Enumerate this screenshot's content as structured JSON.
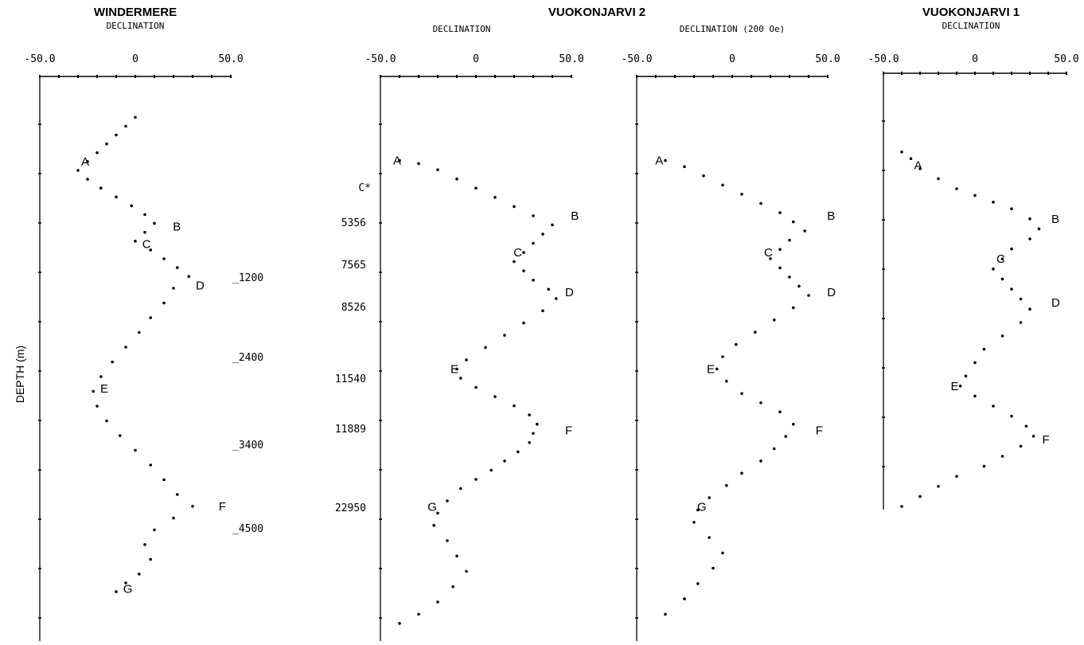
{
  "figure": {
    "titles": {
      "windermere": "WINDERMERE",
      "vuokonjarvi2": "VUOKONJARVI 2",
      "vuokonjarvi1": "VUOKONJARVI 1"
    },
    "depth_label": "DEPTH (m)",
    "windermere_ages": [
      {
        "label": "_1200",
        "at": "D"
      },
      {
        "label": "_2400",
        "at": "E"
      },
      {
        "label": "_3400",
        "at": "F"
      },
      {
        "label": "_4500",
        "at": "G"
      }
    ],
    "vuokonjarvi2_ages": [
      {
        "label": "C*",
        "at": "A-B"
      },
      {
        "label": "5356",
        "at": "B"
      },
      {
        "label": "7565",
        "at": "C-D"
      },
      {
        "label": "8526",
        "at": "D"
      },
      {
        "label": "11540",
        "at": "E"
      },
      {
        "label": "11889",
        "at": "F"
      },
      {
        "label": "22950",
        "at": "G"
      }
    ]
  },
  "chart_data": [
    {
      "type": "scatter",
      "title": "WINDERMERE",
      "xlabel": "DECLINATION",
      "ylabel": "DEPTH (m)",
      "xlim": [
        -50,
        50
      ],
      "xticks": [
        "-50.0",
        "0",
        "50.0"
      ],
      "points": [
        [
          0,
          0.02
        ],
        [
          -5,
          0.05
        ],
        [
          -10,
          0.08
        ],
        [
          -15,
          0.11
        ],
        [
          -20,
          0.14
        ],
        [
          -25,
          0.17
        ],
        [
          -30,
          0.2
        ],
        [
          -25,
          0.23
        ],
        [
          -18,
          0.26
        ],
        [
          -10,
          0.29
        ],
        [
          -2,
          0.32
        ],
        [
          5,
          0.35
        ],
        [
          10,
          0.38
        ],
        [
          5,
          0.41
        ],
        [
          0,
          0.44
        ],
        [
          8,
          0.47
        ],
        [
          15,
          0.5
        ],
        [
          22,
          0.53
        ],
        [
          28,
          0.56
        ],
        [
          20,
          0.6
        ],
        [
          15,
          0.65
        ],
        [
          8,
          0.7
        ],
        [
          2,
          0.75
        ],
        [
          -5,
          0.8
        ],
        [
          -12,
          0.85
        ],
        [
          -18,
          0.9
        ],
        [
          -22,
          0.95
        ],
        [
          -20,
          1.0
        ],
        [
          -15,
          1.05
        ],
        [
          -8,
          1.1
        ],
        [
          0,
          1.15
        ],
        [
          8,
          1.2
        ],
        [
          15,
          1.25
        ],
        [
          22,
          1.3
        ],
        [
          30,
          1.34
        ],
        [
          20,
          1.38
        ],
        [
          10,
          1.42
        ],
        [
          5,
          1.47
        ],
        [
          8,
          1.52
        ],
        [
          2,
          1.57
        ],
        [
          -5,
          1.6
        ],
        [
          -10,
          1.63
        ]
      ],
      "labels": [
        {
          "text": "A",
          "x": -30,
          "y": 0.17
        },
        {
          "text": "B",
          "x": 18,
          "y": 0.39
        },
        {
          "text": "C",
          "x": 2,
          "y": 0.45
        },
        {
          "text": "D",
          "x": 30,
          "y": 0.59
        },
        {
          "text": "E",
          "x": -20,
          "y": 0.94
        },
        {
          "text": "F",
          "x": 42,
          "y": 1.34
        },
        {
          "text": "G",
          "x": -8,
          "y": 1.62
        }
      ]
    },
    {
      "type": "scatter",
      "title": "VUOKONJARVI 2",
      "xlabel": "DECLINATION",
      "xlim": [
        -50,
        50
      ],
      "xticks": [
        "-50.0",
        "0",
        "50.0"
      ],
      "points": [
        [
          -40,
          0.16
        ],
        [
          -30,
          0.17
        ],
        [
          -20,
          0.19
        ],
        [
          -10,
          0.22
        ],
        [
          0,
          0.25
        ],
        [
          10,
          0.28
        ],
        [
          20,
          0.31
        ],
        [
          30,
          0.34
        ],
        [
          40,
          0.37
        ],
        [
          35,
          0.4
        ],
        [
          30,
          0.43
        ],
        [
          25,
          0.46
        ],
        [
          20,
          0.49
        ],
        [
          25,
          0.52
        ],
        [
          30,
          0.55
        ],
        [
          38,
          0.58
        ],
        [
          42,
          0.61
        ],
        [
          35,
          0.65
        ],
        [
          25,
          0.69
        ],
        [
          15,
          0.73
        ],
        [
          5,
          0.77
        ],
        [
          -5,
          0.81
        ],
        [
          -10,
          0.84
        ],
        [
          -8,
          0.87
        ],
        [
          0,
          0.9
        ],
        [
          10,
          0.93
        ],
        [
          20,
          0.96
        ],
        [
          28,
          0.99
        ],
        [
          32,
          1.02
        ],
        [
          30,
          1.05
        ],
        [
          28,
          1.08
        ],
        [
          22,
          1.11
        ],
        [
          15,
          1.14
        ],
        [
          8,
          1.17
        ],
        [
          0,
          1.2
        ],
        [
          -8,
          1.23
        ],
        [
          -15,
          1.27
        ],
        [
          -20,
          1.31
        ],
        [
          -22,
          1.35
        ],
        [
          -15,
          1.4
        ],
        [
          -10,
          1.45
        ],
        [
          -5,
          1.5
        ],
        [
          -12,
          1.55
        ],
        [
          -20,
          1.6
        ],
        [
          -30,
          1.64
        ],
        [
          -40,
          1.67
        ]
      ],
      "labels": [
        {
          "text": "A",
          "x": -45,
          "y": 0.16
        },
        {
          "text": "B",
          "x": 48,
          "y": 0.34
        },
        {
          "text": "C",
          "x": 18,
          "y": 0.46
        },
        {
          "text": "D",
          "x": 45,
          "y": 0.59
        },
        {
          "text": "E",
          "x": -15,
          "y": 0.84
        },
        {
          "text": "F",
          "x": 45,
          "y": 1.04
        },
        {
          "text": "G",
          "x": -27,
          "y": 1.29
        }
      ]
    },
    {
      "type": "scatter",
      "title": "",
      "xlabel": "DECLINATION (200 Oe)",
      "xlim": [
        -50,
        50
      ],
      "xticks": [
        "-50.0",
        "0",
        "50.0"
      ],
      "points": [
        [
          -35,
          0.16
        ],
        [
          -25,
          0.18
        ],
        [
          -15,
          0.21
        ],
        [
          -5,
          0.24
        ],
        [
          5,
          0.27
        ],
        [
          15,
          0.3
        ],
        [
          25,
          0.33
        ],
        [
          32,
          0.36
        ],
        [
          38,
          0.39
        ],
        [
          30,
          0.42
        ],
        [
          25,
          0.45
        ],
        [
          20,
          0.48
        ],
        [
          25,
          0.51
        ],
        [
          30,
          0.54
        ],
        [
          35,
          0.57
        ],
        [
          40,
          0.6
        ],
        [
          32,
          0.64
        ],
        [
          22,
          0.68
        ],
        [
          12,
          0.72
        ],
        [
          2,
          0.76
        ],
        [
          -5,
          0.8
        ],
        [
          -8,
          0.84
        ],
        [
          -3,
          0.88
        ],
        [
          5,
          0.92
        ],
        [
          15,
          0.95
        ],
        [
          25,
          0.98
        ],
        [
          32,
          1.02
        ],
        [
          28,
          1.06
        ],
        [
          22,
          1.1
        ],
        [
          15,
          1.14
        ],
        [
          5,
          1.18
        ],
        [
          -3,
          1.22
        ],
        [
          -12,
          1.26
        ],
        [
          -18,
          1.3
        ],
        [
          -20,
          1.34
        ],
        [
          -12,
          1.39
        ],
        [
          -5,
          1.44
        ],
        [
          -10,
          1.49
        ],
        [
          -18,
          1.54
        ],
        [
          -25,
          1.59
        ],
        [
          -35,
          1.64
        ]
      ],
      "labels": [
        {
          "text": "A",
          "x": -42,
          "y": 0.16
        },
        {
          "text": "B",
          "x": 48,
          "y": 0.34
        },
        {
          "text": "C",
          "x": 15,
          "y": 0.46
        },
        {
          "text": "D",
          "x": 48,
          "y": 0.59
        },
        {
          "text": "E",
          "x": -15,
          "y": 0.84
        },
        {
          "text": "F",
          "x": 42,
          "y": 1.04
        },
        {
          "text": "G",
          "x": -20,
          "y": 1.29
        }
      ]
    },
    {
      "type": "scatter",
      "title": "VUOKONJARVI 1",
      "xlabel": "DECLINATION",
      "xlim": [
        -50,
        50
      ],
      "xticks": [
        "-50.0",
        "0",
        "50.0"
      ],
      "points": [
        [
          -40,
          0.14
        ],
        [
          -35,
          0.16
        ],
        [
          -30,
          0.19
        ],
        [
          -20,
          0.22
        ],
        [
          -10,
          0.25
        ],
        [
          0,
          0.27
        ],
        [
          10,
          0.29
        ],
        [
          20,
          0.31
        ],
        [
          30,
          0.34
        ],
        [
          35,
          0.37
        ],
        [
          30,
          0.4
        ],
        [
          20,
          0.43
        ],
        [
          15,
          0.46
        ],
        [
          10,
          0.49
        ],
        [
          15,
          0.52
        ],
        [
          20,
          0.55
        ],
        [
          25,
          0.58
        ],
        [
          30,
          0.61
        ],
        [
          25,
          0.65
        ],
        [
          15,
          0.69
        ],
        [
          5,
          0.73
        ],
        [
          0,
          0.77
        ],
        [
          -5,
          0.81
        ],
        [
          -8,
          0.84
        ],
        [
          0,
          0.87
        ],
        [
          10,
          0.9
        ],
        [
          20,
          0.93
        ],
        [
          28,
          0.96
        ],
        [
          32,
          0.99
        ],
        [
          25,
          1.02
        ],
        [
          15,
          1.05
        ],
        [
          5,
          1.08
        ],
        [
          -10,
          1.11
        ],
        [
          -20,
          1.14
        ],
        [
          -30,
          1.17
        ],
        [
          -40,
          1.2
        ]
      ],
      "labels": [
        {
          "text": "A",
          "x": -35,
          "y": 0.18
        },
        {
          "text": "B",
          "x": 40,
          "y": 0.34
        },
        {
          "text": "C",
          "x": 10,
          "y": 0.46
        },
        {
          "text": "D",
          "x": 40,
          "y": 0.59
        },
        {
          "text": "E",
          "x": -15,
          "y": 0.84
        },
        {
          "text": "F",
          "x": 35,
          "y": 1.0
        }
      ]
    }
  ]
}
